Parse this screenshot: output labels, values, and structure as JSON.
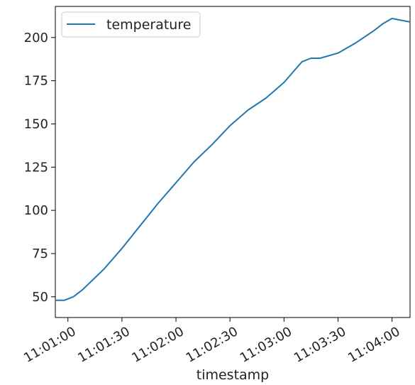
{
  "chart_data": {
    "type": "line",
    "xlabel": "timestamp",
    "ylabel": "",
    "xlim": [
      "11:00:53",
      "11:04:10"
    ],
    "ylim": [
      38,
      218
    ],
    "x_ticks": [
      "11:01:00",
      "11:01:30",
      "11:02:00",
      "11:02:30",
      "11:03:00",
      "11:03:30",
      "11:04:00"
    ],
    "y_ticks": [
      50,
      75,
      100,
      125,
      150,
      175,
      200
    ],
    "legend": {
      "position": "upper-left",
      "entries": [
        "temperature"
      ]
    },
    "grid": false,
    "series": [
      {
        "name": "temperature",
        "color": "#1f77b4",
        "x": [
          "11:00:53",
          "11:00:58",
          "11:01:03",
          "11:01:08",
          "11:01:13",
          "11:01:20",
          "11:01:30",
          "11:01:40",
          "11:01:50",
          "11:02:00",
          "11:02:10",
          "11:02:20",
          "11:02:30",
          "11:02:40",
          "11:02:50",
          "11:03:00",
          "11:03:05",
          "11:03:10",
          "11:03:15",
          "11:03:20",
          "11:03:30",
          "11:03:40",
          "11:03:50",
          "11:03:55",
          "11:04:00",
          "11:04:05",
          "11:04:10"
        ],
        "values": [
          48,
          48,
          50,
          54,
          59,
          66,
          78,
          91,
          104,
          116,
          128,
          138,
          149,
          158,
          165,
          174,
          180,
          186,
          188,
          188,
          191,
          197,
          204,
          208,
          211,
          210,
          209
        ]
      }
    ]
  }
}
